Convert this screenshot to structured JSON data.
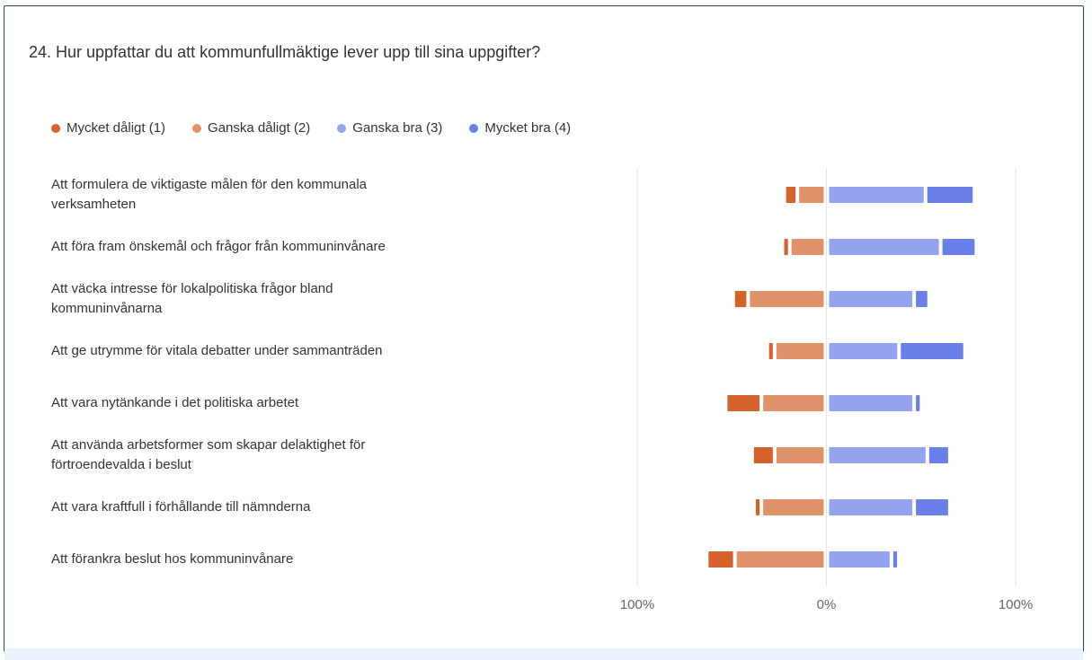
{
  "chart_data": {
    "type": "diverging-bar",
    "title": "24. Hur uppfattar du att kommunfullmäktige lever upp till sina uppgifter?",
    "categories": [
      "Att formulera de viktigaste målen för den kommunala verksamheten",
      "Att föra fram önskemål och frågor från kommuninvånare",
      "Att väcka intresse för lokalpolitiska frågor bland kommuninvånarna",
      "Att ge utrymme för vitala debatter under sammanträden",
      "Att vara nytänkande i det politiska arbetet",
      "Att använda arbetsformer som skapar delaktighet för förtroendevalda i beslut",
      "Att vara kraftfull i förhållande till nämnderna",
      "Att förankra beslut hos kommuninvånare"
    ],
    "series": [
      {
        "name": "Mycket dåligt (1)",
        "color": "#d4622a",
        "side": "negative",
        "values": [
          5,
          2,
          6,
          2,
          17,
          10,
          2,
          13
        ]
      },
      {
        "name": "Ganska dåligt (2)",
        "color": "#e0936a",
        "side": "negative",
        "values": [
          13,
          17,
          39,
          25,
          32,
          25,
          32,
          46
        ]
      },
      {
        "name": "Ganska bra (3)",
        "color": "#94a3f0",
        "side": "positive",
        "values": [
          50,
          58,
          44,
          36,
          44,
          51,
          44,
          32
        ]
      },
      {
        "name": "Mycket bra (4)",
        "color": "#6880e8",
        "side": "positive",
        "values": [
          24,
          17,
          6,
          33,
          2,
          10,
          17,
          2
        ]
      }
    ],
    "xlim": [
      -100,
      100
    ],
    "xticks": [
      {
        "value": -100,
        "label": "100%"
      },
      {
        "value": 0,
        "label": "0%"
      },
      {
        "value": 100,
        "label": "100%"
      }
    ],
    "grid": true
  }
}
